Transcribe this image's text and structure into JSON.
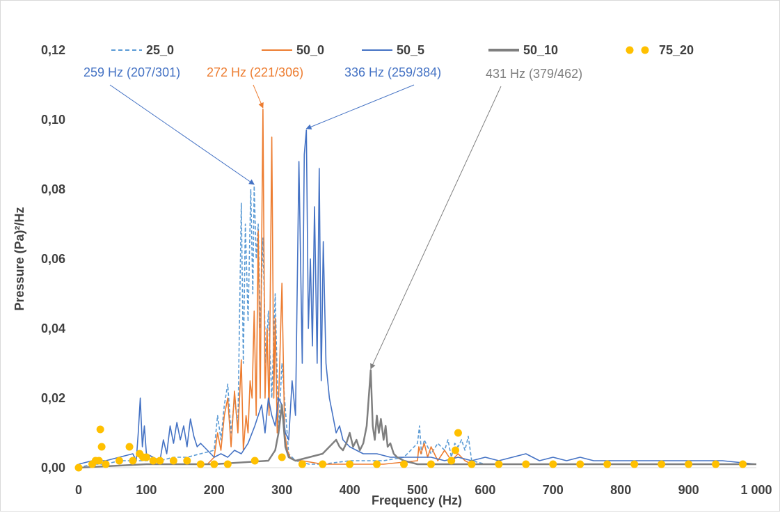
{
  "chart_data": {
    "type": "line",
    "xlabel": "Frequency (Hz)",
    "ylabel": "Pressure (Pa)²/Hz",
    "xlim": [
      0,
      1000
    ],
    "ylim": [
      0,
      0.12
    ],
    "x_ticks": [
      0,
      100,
      200,
      300,
      400,
      500,
      600,
      700,
      800,
      900,
      1000
    ],
    "x_tick_labels": [
      "0",
      "100",
      "200",
      "300",
      "400",
      "500",
      "600",
      "700",
      "800",
      "900",
      "1 000"
    ],
    "y_ticks": [
      0,
      0.02,
      0.04,
      0.06,
      0.08,
      0.1,
      0.12
    ],
    "y_tick_labels": [
      "0,00",
      "0,02",
      "0,04",
      "0,06",
      "0,08",
      "0,10",
      "0,12"
    ],
    "grid": false,
    "legend_position": "top",
    "series": [
      {
        "name": "25_0",
        "color": "#5b9bd5",
        "style": "dashed",
        "x": [
          0,
          20,
          40,
          60,
          80,
          100,
          120,
          140,
          160,
          180,
          200,
          205,
          210,
          215,
          220,
          225,
          230,
          235,
          240,
          243,
          246,
          250,
          254,
          257,
          259,
          262,
          265,
          268,
          272,
          276,
          280,
          285,
          290,
          295,
          300,
          310,
          320,
          340,
          360,
          400,
          450,
          480,
          500,
          503,
          506,
          510,
          520,
          530,
          540,
          545,
          550,
          555,
          560,
          565,
          570,
          575,
          580,
          600,
          650,
          700,
          800,
          900,
          1000
        ],
        "y": [
          0,
          0.001,
          0.001,
          0.002,
          0.002,
          0.002,
          0.002,
          0.003,
          0.003,
          0.004,
          0.005,
          0.015,
          0.008,
          0.018,
          0.024,
          0.01,
          0.02,
          0.012,
          0.076,
          0.03,
          0.07,
          0.042,
          0.08,
          0.05,
          0.081,
          0.06,
          0.07,
          0.04,
          0.066,
          0.03,
          0.045,
          0.02,
          0.05,
          0.01,
          0.03,
          0.004,
          0.002,
          0.001,
          0.001,
          0.002,
          0.002,
          0.003,
          0.007,
          0.012,
          0.004,
          0.008,
          0.004,
          0.007,
          0.005,
          0.008,
          0.003,
          0.007,
          0.006,
          0.008,
          0.005,
          0.009,
          0.002,
          0.001,
          0.001,
          0.001,
          0.001,
          0.001,
          0.001
        ]
      },
      {
        "name": "50_0",
        "color": "#ed7d31",
        "style": "solid",
        "x": [
          0,
          100,
          150,
          190,
          200,
          205,
          210,
          215,
          220,
          225,
          230,
          235,
          240,
          243,
          247,
          250,
          253,
          256,
          259,
          262,
          265,
          268,
          272,
          275,
          278,
          281,
          285,
          288,
          290,
          293,
          296,
          300,
          304,
          308,
          312,
          320,
          330,
          360,
          400,
          450,
          500,
          502,
          505,
          510,
          515,
          520,
          530,
          540,
          550,
          560,
          570,
          580,
          600,
          700,
          800,
          900,
          1000
        ],
        "y": [
          0,
          0.001,
          0.001,
          0.001,
          0.003,
          0.01,
          0.005,
          0.015,
          0.02,
          0.006,
          0.022,
          0.01,
          0.031,
          0.005,
          0.015,
          0.01,
          0.025,
          0.02,
          0.045,
          0.015,
          0.068,
          0.02,
          0.103,
          0.02,
          0.04,
          0.015,
          0.095,
          0.02,
          0.043,
          0.01,
          0.025,
          0.053,
          0.01,
          0.005,
          0.003,
          0.002,
          0.002,
          0.001,
          0.001,
          0.001,
          0.002,
          0.006,
          0.004,
          0.007,
          0.003,
          0.006,
          0.002,
          0.005,
          0.002,
          0.004,
          0.002,
          0.001,
          0.001,
          0.001,
          0.001,
          0.001,
          0.001
        ]
      },
      {
        "name": "50_5",
        "color": "#4472c4",
        "style": "solid",
        "x": [
          0,
          20,
          40,
          60,
          80,
          85,
          88,
          91,
          94,
          97,
          100,
          110,
          120,
          125,
          130,
          135,
          140,
          145,
          150,
          155,
          160,
          165,
          170,
          175,
          180,
          190,
          200,
          210,
          220,
          230,
          240,
          250,
          260,
          270,
          275,
          280,
          285,
          290,
          295,
          300,
          305,
          310,
          315,
          320,
          325,
          330,
          333,
          336,
          339,
          342,
          345,
          348,
          352,
          355,
          358,
          361,
          365,
          370,
          375,
          380,
          385,
          390,
          400,
          410,
          420,
          440,
          460,
          480,
          500,
          520,
          540,
          560,
          580,
          600,
          620,
          640,
          660,
          680,
          700,
          720,
          740,
          760,
          800,
          850,
          900,
          950,
          1000
        ],
        "y": [
          0.001,
          0.002,
          0.002,
          0.003,
          0.004,
          0.002,
          0.01,
          0.02,
          0.006,
          0.012,
          0.004,
          0.003,
          0.002,
          0.008,
          0.004,
          0.012,
          0.007,
          0.013,
          0.008,
          0.012,
          0.006,
          0.014,
          0.009,
          0.006,
          0.007,
          0.005,
          0.003,
          0.004,
          0.003,
          0.005,
          0.004,
          0.007,
          0.012,
          0.018,
          0.01,
          0.02,
          0.015,
          0.012,
          0.02,
          0.018,
          0.01,
          0.008,
          0.025,
          0.015,
          0.088,
          0.03,
          0.09,
          0.097,
          0.04,
          0.06,
          0.035,
          0.075,
          0.03,
          0.086,
          0.025,
          0.065,
          0.03,
          0.02,
          0.015,
          0.01,
          0.012,
          0.008,
          0.006,
          0.005,
          0.004,
          0.004,
          0.003,
          0.003,
          0.003,
          0.003,
          0.002,
          0.003,
          0.002,
          0.003,
          0.002,
          0.003,
          0.004,
          0.002,
          0.003,
          0.002,
          0.003,
          0.002,
          0.002,
          0.002,
          0.002,
          0.002,
          0.001
        ]
      },
      {
        "name": "50_10",
        "color": "#7f7f7f",
        "style": "solid",
        "x": [
          0,
          100,
          200,
          280,
          290,
          295,
          300,
          305,
          310,
          320,
          340,
          360,
          380,
          385,
          390,
          395,
          400,
          405,
          410,
          415,
          420,
          425,
          428,
          431,
          434,
          437,
          440,
          443,
          446,
          450,
          453,
          456,
          460,
          465,
          470,
          480,
          500,
          600,
          700,
          800,
          900,
          1000
        ],
        "y": [
          0,
          0.001,
          0.001,
          0.002,
          0.005,
          0.01,
          0.018,
          0.006,
          0.003,
          0.002,
          0.003,
          0.004,
          0.008,
          0.006,
          0.005,
          0.007,
          0.01,
          0.006,
          0.008,
          0.005,
          0.007,
          0.012,
          0.02,
          0.028,
          0.012,
          0.008,
          0.015,
          0.01,
          0.014,
          0.008,
          0.012,
          0.006,
          0.007,
          0.004,
          0.003,
          0.002,
          0.001,
          0.001,
          0.001,
          0.001,
          0.001,
          0.001
        ]
      },
      {
        "name": "75_20",
        "color": "#ffc000",
        "style": "dots",
        "x": [
          0,
          20,
          25,
          30,
          32,
          34,
          40,
          60,
          75,
          80,
          90,
          95,
          100,
          110,
          120,
          140,
          160,
          180,
          200,
          220,
          260,
          300,
          330,
          360,
          400,
          440,
          480,
          520,
          550,
          556,
          560,
          580,
          620,
          660,
          700,
          740,
          780,
          820,
          860,
          900,
          940,
          980
        ],
        "y": [
          0,
          0.001,
          0.002,
          0.002,
          0.011,
          0.006,
          0.001,
          0.002,
          0.006,
          0.002,
          0.004,
          0.003,
          0.003,
          0.002,
          0.002,
          0.002,
          0.002,
          0.001,
          0.001,
          0.001,
          0.002,
          0.003,
          0.001,
          0.001,
          0.001,
          0.001,
          0.001,
          0.001,
          0.002,
          0.005,
          0.01,
          0.001,
          0.001,
          0.001,
          0.001,
          0.001,
          0.001,
          0.001,
          0.001,
          0.001,
          0.001,
          0.001
        ]
      }
    ],
    "annotations": [
      {
        "text": "259 Hz (207/301)",
        "color": "#4472c4",
        "target": [
          259,
          0.081
        ]
      },
      {
        "text": "272 Hz (221/306)",
        "color": "#ed7d31",
        "target": [
          272,
          0.103
        ]
      },
      {
        "text": "336 Hz (259/384)",
        "color": "#4472c4",
        "target": [
          336,
          0.097
        ]
      },
      {
        "text": "431 Hz (379/462)",
        "color": "#7f7f7f",
        "target": [
          431,
          0.028
        ]
      }
    ]
  }
}
